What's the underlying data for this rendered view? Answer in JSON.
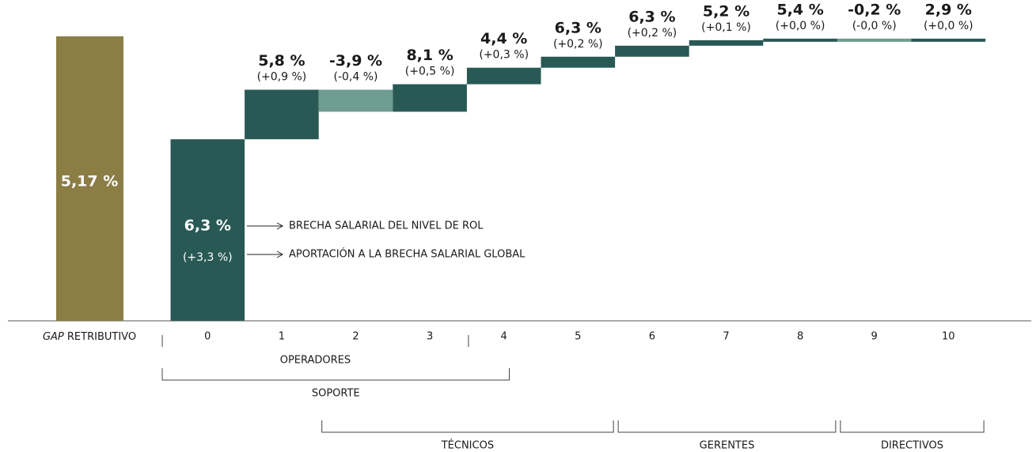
{
  "chart_data": {
    "type": "waterfall",
    "total": {
      "category_em": "GAP",
      "category": "RETRIBUTIVO",
      "value": 5.17,
      "value_label": "5,17 %",
      "color": "#8b7d44"
    },
    "categories": [
      "0",
      "1",
      "2",
      "3",
      "4",
      "5",
      "6",
      "7",
      "8",
      "9",
      "10"
    ],
    "values": [
      3.3,
      0.9,
      -0.4,
      0.5,
      0.3,
      0.2,
      0.2,
      0.1,
      0.0,
      -0.0,
      0.0
    ],
    "value_labels": [
      "(+3,3 %)",
      "(+0,9 %)",
      "(-0,4 %)",
      "(+0,5 %)",
      "(+0,3 %)",
      "(+0,2 %)",
      "(+0,2 %)",
      "(+0,1 %)",
      "(+0,0 %)",
      "(-0,0 %)",
      "(+0,0 %)"
    ],
    "gaps": [
      6.3,
      5.8,
      -3.9,
      8.1,
      4.4,
      6.3,
      6.3,
      5.2,
      5.4,
      -0.2,
      2.9
    ],
    "gap_labels": [
      "6,3 %",
      "5,8 %",
      "-3,9 %",
      "8,1 %",
      "4,4 %",
      "6,3 %",
      "6,3 %",
      "5,2 %",
      "5,4 %",
      "-0,2 %",
      "2,9 %"
    ],
    "positive_color": "#285955",
    "negative_color": "#6e9c8f",
    "annotations": [
      "BRECHA SALARIAL DEL NIVEL DE ROL",
      "APORTACIÓN A LA BRECHA SALARIAL GLOBAL"
    ],
    "groups": [
      [
        {
          "name": "OPERADORES",
          "from": 0,
          "to": 3
        }
      ],
      [
        {
          "name": "SOPORTE",
          "from": 0,
          "to": 4
        }
      ],
      [
        {
          "name": "TÉCNICOS",
          "from": 2,
          "to": 5
        },
        {
          "name": "GERENTES",
          "from": 6,
          "to": 8
        },
        {
          "name": "DIRECTIVOS",
          "from": 9,
          "to": 10
        }
      ]
    ]
  }
}
